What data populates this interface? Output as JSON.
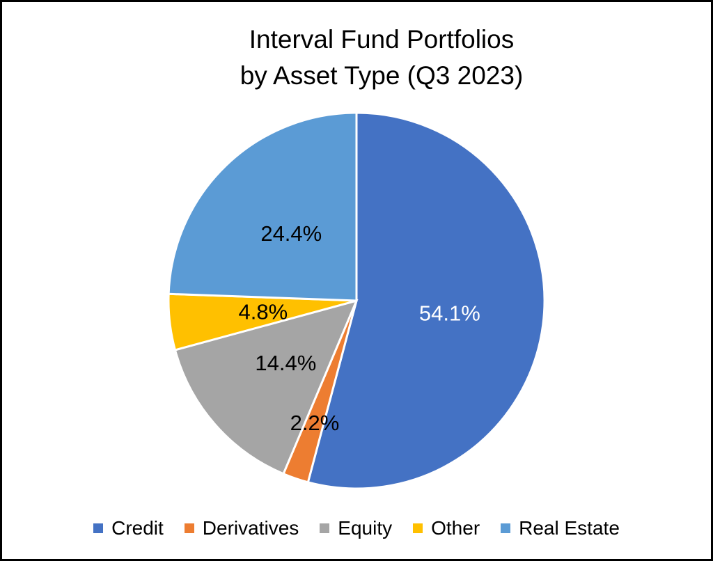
{
  "chart_data": {
    "type": "pie",
    "title": [
      "Interval Fund Portfolios",
      "by Asset Type (Q3 2023)"
    ],
    "categories": [
      "Credit",
      "Derivatives",
      "Equity",
      "Other",
      "Real Estate"
    ],
    "values": [
      54.1,
      2.2,
      14.4,
      4.8,
      24.4
    ],
    "labels": [
      "54.1%",
      "2.2%",
      "14.4%",
      "4.8%",
      "24.4%"
    ],
    "colors": [
      "#4472C4",
      "#ED7D31",
      "#A5A5A5",
      "#FFC000",
      "#5B9BD5"
    ],
    "label_colors": [
      "#FFFFFF",
      "#000000",
      "#000000",
      "#000000",
      "#000000"
    ],
    "legend_position": "bottom",
    "start": "top",
    "direction": "clockwise"
  }
}
